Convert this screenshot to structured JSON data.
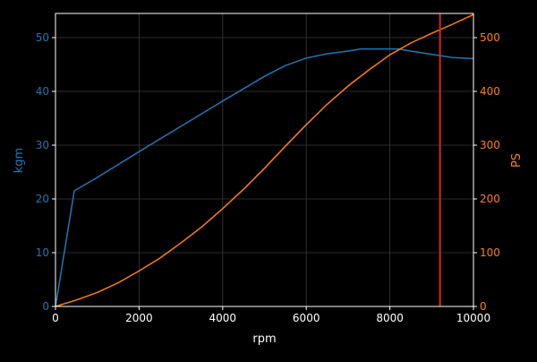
{
  "chart_data": {
    "type": "line",
    "xlabel": "rpm",
    "ylabel_left": "kgm",
    "ylabel_right": "PS",
    "xlim": [
      0,
      10000
    ],
    "ylim_left": [
      0,
      54.5
    ],
    "ylim_right": [
      0,
      545
    ],
    "x_ticks": [
      0,
      2000,
      4000,
      6000,
      8000,
      10000
    ],
    "y_left_ticks": [
      0,
      10,
      20,
      30,
      40,
      50
    ],
    "y_right_ticks": [
      0,
      100,
      200,
      300,
      400,
      500
    ],
    "grid": true,
    "colors": {
      "background": "#000000",
      "grid": "#3a3a3a",
      "axis": "#ffffff",
      "torque": "#1f77b4",
      "power": "#ff7f0e",
      "redline": "#d62728"
    },
    "series": [
      {
        "axis": "left",
        "color": "#1f77b4",
        "x": [
          0,
          450,
          1000,
          2000,
          3000,
          4000,
          5000,
          5500,
          6000,
          6500,
          7000,
          7300,
          8200,
          8500,
          9000,
          9500,
          10000
        ],
        "y": [
          0,
          21.5,
          24.0,
          28.8,
          33.5,
          38.2,
          42.8,
          44.8,
          46.2,
          47.0,
          47.5,
          47.9,
          47.9,
          47.5,
          46.9,
          46.3,
          46.1
        ]
      },
      {
        "axis": "right",
        "color": "#ff7f0e",
        "x": [
          0,
          500,
          1000,
          1500,
          2000,
          2500,
          3000,
          3500,
          4000,
          4500,
          5000,
          5500,
          6000,
          6500,
          7000,
          7500,
          8000,
          8500,
          9000,
          9500,
          10000
        ],
        "y": [
          0,
          12,
          26,
          44,
          66,
          90,
          118,
          148,
          182,
          218,
          257,
          298,
          338,
          376,
          410,
          440,
          468,
          490,
          508,
          525,
          543
        ]
      }
    ],
    "vlines": [
      {
        "x": 9200,
        "color": "#d62728"
      }
    ]
  }
}
